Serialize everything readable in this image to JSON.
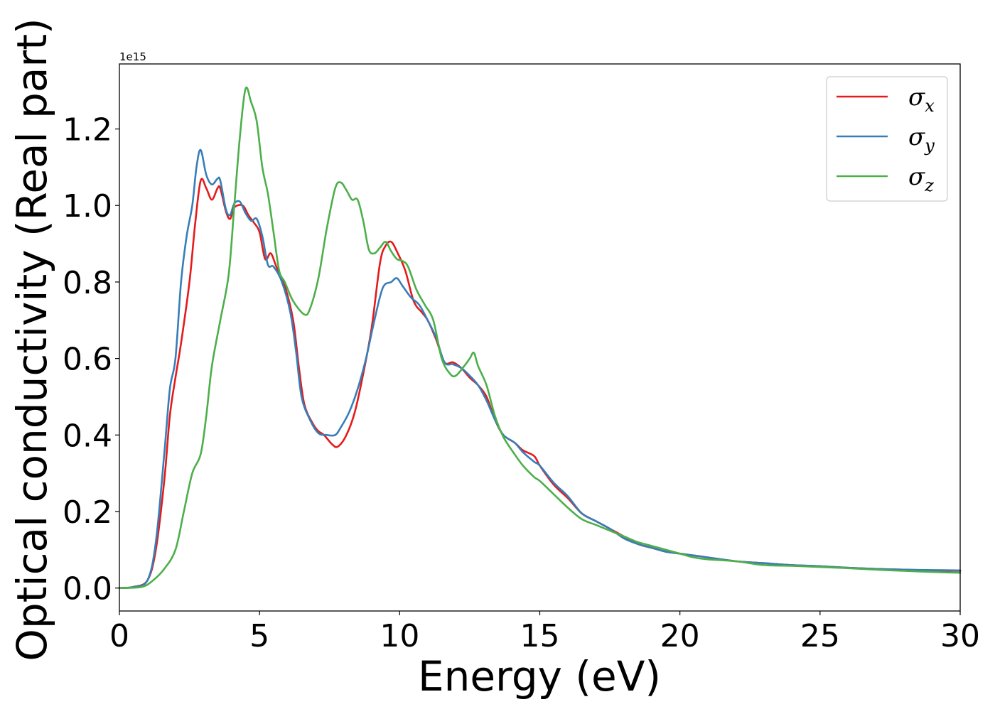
{
  "chart_data": {
    "type": "line",
    "xlabel": "Energy (eV)",
    "ylabel": "Optical conductivity (Real part)",
    "y_offset_text": "1e15",
    "xlim": [
      0,
      30
    ],
    "ylim": [
      -0.06,
      1.37
    ],
    "x_ticks": [
      0,
      5,
      10,
      15,
      20,
      25,
      30
    ],
    "x_tick_labels": [
      "0",
      "5",
      "10",
      "15",
      "20",
      "25",
      "30"
    ],
    "y_ticks": [
      0.0,
      0.2,
      0.4,
      0.6,
      0.8,
      1.0,
      1.2
    ],
    "y_tick_labels": [
      "0.0",
      "0.2",
      "0.4",
      "0.6",
      "0.8",
      "1.0",
      "1.2"
    ],
    "grid": false,
    "legend_position": "top-right",
    "series": [
      {
        "name": "σ",
        "subscript": "x",
        "color": "#e41a1c",
        "points": [
          [
            0,
            0
          ],
          [
            0.5,
            0.003
          ],
          [
            1.0,
            0.02
          ],
          [
            1.3,
            0.1
          ],
          [
            1.6,
            0.28
          ],
          [
            1.8,
            0.45
          ],
          [
            2.0,
            0.55
          ],
          [
            2.2,
            0.64
          ],
          [
            2.5,
            0.8
          ],
          [
            2.7,
            0.95
          ],
          [
            2.9,
            1.065
          ],
          [
            3.1,
            1.045
          ],
          [
            3.3,
            1.015
          ],
          [
            3.5,
            1.045
          ],
          [
            3.6,
            1.045
          ],
          [
            3.8,
            0.985
          ],
          [
            3.95,
            0.965
          ],
          [
            4.1,
            0.995
          ],
          [
            4.4,
            1.0
          ],
          [
            4.6,
            0.975
          ],
          [
            4.8,
            0.955
          ],
          [
            5.0,
            0.93
          ],
          [
            5.2,
            0.86
          ],
          [
            5.4,
            0.875
          ],
          [
            5.6,
            0.84
          ],
          [
            5.9,
            0.79
          ],
          [
            6.2,
            0.7
          ],
          [
            6.4,
            0.58
          ],
          [
            6.6,
            0.48
          ],
          [
            6.9,
            0.43
          ],
          [
            7.1,
            0.41
          ],
          [
            7.3,
            0.4
          ],
          [
            7.6,
            0.375
          ],
          [
            7.8,
            0.37
          ],
          [
            8.1,
            0.4
          ],
          [
            8.4,
            0.46
          ],
          [
            8.7,
            0.56
          ],
          [
            9.0,
            0.68
          ],
          [
            9.3,
            0.85
          ],
          [
            9.5,
            0.895
          ],
          [
            9.7,
            0.905
          ],
          [
            9.9,
            0.88
          ],
          [
            10.2,
            0.83
          ],
          [
            10.5,
            0.75
          ],
          [
            10.8,
            0.72
          ],
          [
            11.0,
            0.7
          ],
          [
            11.3,
            0.65
          ],
          [
            11.6,
            0.59
          ],
          [
            11.9,
            0.59
          ],
          [
            12.2,
            0.575
          ],
          [
            12.5,
            0.55
          ],
          [
            12.8,
            0.53
          ],
          [
            13.1,
            0.5
          ],
          [
            13.4,
            0.44
          ],
          [
            13.7,
            0.4
          ],
          [
            14.1,
            0.38
          ],
          [
            14.4,
            0.36
          ],
          [
            14.8,
            0.345
          ],
          [
            15.0,
            0.32
          ],
          [
            15.5,
            0.27
          ],
          [
            16.0,
            0.235
          ],
          [
            16.5,
            0.195
          ],
          [
            17.0,
            0.175
          ],
          [
            17.5,
            0.155
          ],
          [
            18.0,
            0.135
          ],
          [
            18.5,
            0.115
          ],
          [
            19.0,
            0.105
          ],
          [
            19.5,
            0.095
          ],
          [
            20.0,
            0.09
          ],
          [
            20.5,
            0.085
          ],
          [
            21.0,
            0.08
          ],
          [
            22.0,
            0.07
          ],
          [
            23.0,
            0.065
          ],
          [
            24.0,
            0.06
          ],
          [
            25.0,
            0.057
          ],
          [
            26.0,
            0.053
          ],
          [
            27.0,
            0.05
          ],
          [
            28.0,
            0.048
          ],
          [
            29.0,
            0.046
          ],
          [
            30.0,
            0.045
          ]
        ]
      },
      {
        "name": "σ",
        "subscript": "y",
        "color": "#377eb8",
        "points": [
          [
            0,
            0
          ],
          [
            0.5,
            0.003
          ],
          [
            1.0,
            0.02
          ],
          [
            1.3,
            0.12
          ],
          [
            1.6,
            0.35
          ],
          [
            1.8,
            0.52
          ],
          [
            2.0,
            0.6
          ],
          [
            2.2,
            0.8
          ],
          [
            2.4,
            0.92
          ],
          [
            2.6,
            1.0
          ],
          [
            2.75,
            1.1
          ],
          [
            2.9,
            1.145
          ],
          [
            3.1,
            1.08
          ],
          [
            3.3,
            1.055
          ],
          [
            3.5,
            1.07
          ],
          [
            3.6,
            1.065
          ],
          [
            3.8,
            0.99
          ],
          [
            3.95,
            0.975
          ],
          [
            4.1,
            1.005
          ],
          [
            4.3,
            1.01
          ],
          [
            4.5,
            0.98
          ],
          [
            4.7,
            0.96
          ],
          [
            4.9,
            0.965
          ],
          [
            5.1,
            0.92
          ],
          [
            5.3,
            0.845
          ],
          [
            5.5,
            0.84
          ],
          [
            5.8,
            0.8
          ],
          [
            6.1,
            0.72
          ],
          [
            6.3,
            0.62
          ],
          [
            6.5,
            0.5
          ],
          [
            6.8,
            0.44
          ],
          [
            7.1,
            0.405
          ],
          [
            7.4,
            0.4
          ],
          [
            7.7,
            0.4
          ],
          [
            7.9,
            0.42
          ],
          [
            8.2,
            0.46
          ],
          [
            8.5,
            0.52
          ],
          [
            8.8,
            0.6
          ],
          [
            9.1,
            0.7
          ],
          [
            9.4,
            0.785
          ],
          [
            9.7,
            0.8
          ],
          [
            9.9,
            0.81
          ],
          [
            10.1,
            0.79
          ],
          [
            10.4,
            0.76
          ],
          [
            10.7,
            0.74
          ],
          [
            11.0,
            0.7
          ],
          [
            11.3,
            0.655
          ],
          [
            11.6,
            0.59
          ],
          [
            11.9,
            0.585
          ],
          [
            12.2,
            0.575
          ],
          [
            12.5,
            0.555
          ],
          [
            12.8,
            0.53
          ],
          [
            13.1,
            0.49
          ],
          [
            13.4,
            0.44
          ],
          [
            13.7,
            0.4
          ],
          [
            14.1,
            0.38
          ],
          [
            14.4,
            0.355
          ],
          [
            14.8,
            0.33
          ],
          [
            15.0,
            0.32
          ],
          [
            15.5,
            0.275
          ],
          [
            16.0,
            0.24
          ],
          [
            16.5,
            0.195
          ],
          [
            17.0,
            0.175
          ],
          [
            17.5,
            0.155
          ],
          [
            18.0,
            0.13
          ],
          [
            18.5,
            0.115
          ],
          [
            19.0,
            0.105
          ],
          [
            19.5,
            0.095
          ],
          [
            20.0,
            0.09
          ],
          [
            20.5,
            0.085
          ],
          [
            21.0,
            0.08
          ],
          [
            22.0,
            0.07
          ],
          [
            23.0,
            0.065
          ],
          [
            24.0,
            0.06
          ],
          [
            25.0,
            0.057
          ],
          [
            26.0,
            0.053
          ],
          [
            27.0,
            0.05
          ],
          [
            28.0,
            0.048
          ],
          [
            29.0,
            0.047
          ],
          [
            30.0,
            0.046
          ]
        ]
      },
      {
        "name": "σ",
        "subscript": "z",
        "color": "#4daf4a",
        "points": [
          [
            0,
            0
          ],
          [
            0.8,
            0.003
          ],
          [
            1.2,
            0.02
          ],
          [
            1.6,
            0.05
          ],
          [
            2.0,
            0.1
          ],
          [
            2.3,
            0.2
          ],
          [
            2.6,
            0.3
          ],
          [
            2.9,
            0.35
          ],
          [
            3.1,
            0.45
          ],
          [
            3.3,
            0.58
          ],
          [
            3.6,
            0.7
          ],
          [
            3.9,
            0.82
          ],
          [
            4.1,
            1.0
          ],
          [
            4.3,
            1.18
          ],
          [
            4.5,
            1.305
          ],
          [
            4.7,
            1.27
          ],
          [
            4.9,
            1.22
          ],
          [
            5.1,
            1.1
          ],
          [
            5.3,
            1.03
          ],
          [
            5.5,
            0.93
          ],
          [
            5.7,
            0.83
          ],
          [
            5.9,
            0.8
          ],
          [
            6.2,
            0.75
          ],
          [
            6.6,
            0.715
          ],
          [
            6.8,
            0.73
          ],
          [
            7.1,
            0.81
          ],
          [
            7.4,
            0.94
          ],
          [
            7.7,
            1.045
          ],
          [
            7.9,
            1.06
          ],
          [
            8.1,
            1.04
          ],
          [
            8.3,
            1.015
          ],
          [
            8.5,
            1.015
          ],
          [
            8.7,
            0.96
          ],
          [
            8.9,
            0.885
          ],
          [
            9.1,
            0.875
          ],
          [
            9.3,
            0.89
          ],
          [
            9.5,
            0.905
          ],
          [
            9.7,
            0.88
          ],
          [
            9.9,
            0.86
          ],
          [
            10.1,
            0.855
          ],
          [
            10.3,
            0.84
          ],
          [
            10.6,
            0.78
          ],
          [
            10.9,
            0.74
          ],
          [
            11.2,
            0.7
          ],
          [
            11.5,
            0.6
          ],
          [
            11.8,
            0.56
          ],
          [
            12.0,
            0.555
          ],
          [
            12.3,
            0.58
          ],
          [
            12.5,
            0.6
          ],
          [
            12.65,
            0.615
          ],
          [
            12.8,
            0.58
          ],
          [
            13.1,
            0.53
          ],
          [
            13.4,
            0.45
          ],
          [
            13.7,
            0.395
          ],
          [
            14.1,
            0.35
          ],
          [
            14.4,
            0.32
          ],
          [
            14.8,
            0.29
          ],
          [
            15.0,
            0.28
          ],
          [
            15.5,
            0.245
          ],
          [
            16.0,
            0.21
          ],
          [
            16.5,
            0.18
          ],
          [
            17.0,
            0.165
          ],
          [
            17.5,
            0.15
          ],
          [
            18.0,
            0.135
          ],
          [
            18.5,
            0.12
          ],
          [
            19.0,
            0.11
          ],
          [
            19.5,
            0.1
          ],
          [
            20.0,
            0.09
          ],
          [
            20.5,
            0.08
          ],
          [
            21.0,
            0.075
          ],
          [
            22.0,
            0.07
          ],
          [
            23.0,
            0.06
          ],
          [
            24.0,
            0.058
          ],
          [
            25.0,
            0.055
          ],
          [
            26.0,
            0.052
          ],
          [
            27.0,
            0.048
          ],
          [
            28.0,
            0.045
          ],
          [
            29.0,
            0.042
          ],
          [
            30.0,
            0.04
          ]
        ]
      }
    ]
  }
}
